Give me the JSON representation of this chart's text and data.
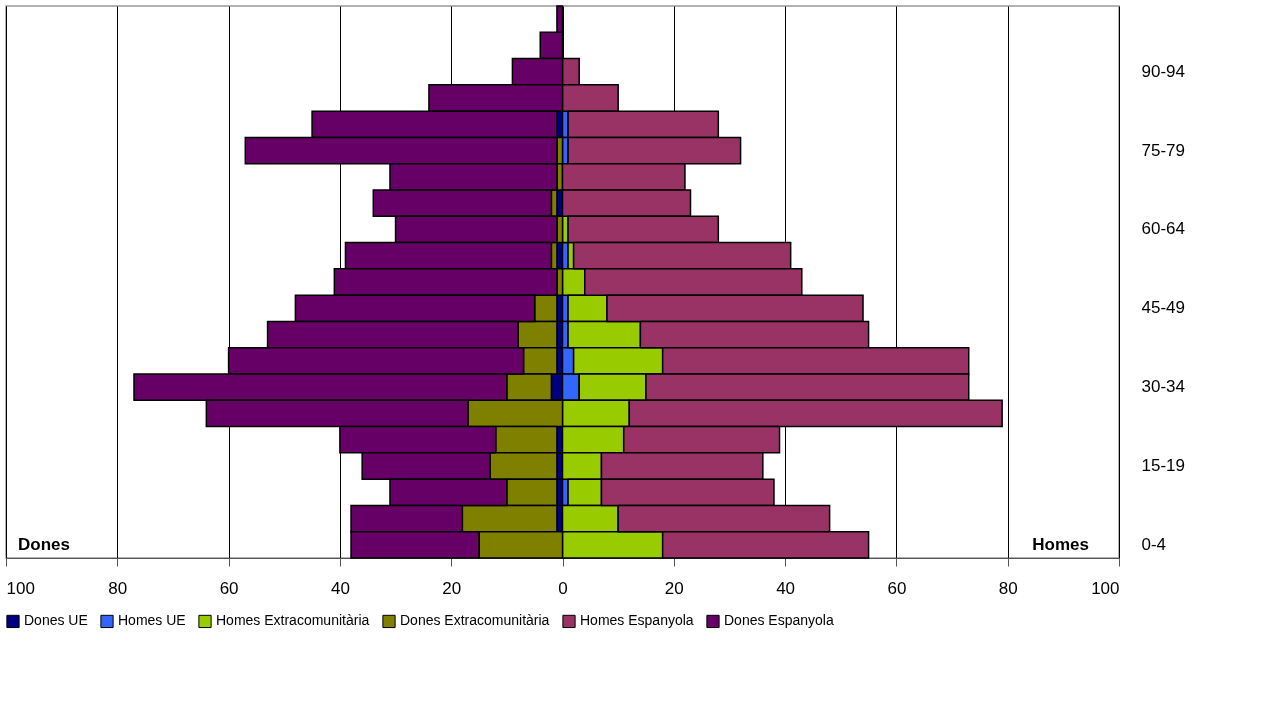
{
  "chart_data": {
    "type": "bar",
    "orientation": "horizontal",
    "stacked": true,
    "categories": [
      null,
      null,
      "90-94",
      null,
      null,
      "75-79",
      null,
      null,
      "60-64",
      null,
      null,
      "45-49",
      null,
      null,
      "30-34",
      null,
      null,
      "15-19",
      null,
      null,
      "0-4"
    ],
    "series": [
      {
        "name": "Dones UE",
        "color": "#000080",
        "values": [
          null,
          null,
          null,
          null,
          -1,
          null,
          null,
          -1,
          null,
          -1,
          null,
          -1,
          -1,
          -1,
          -2,
          null,
          -1,
          -1,
          -1,
          -1,
          null
        ]
      },
      {
        "name": "Homes UE",
        "color": "#3366ff",
        "values": [
          null,
          null,
          null,
          null,
          1,
          1,
          null,
          null,
          null,
          1,
          null,
          1,
          1,
          2,
          3,
          null,
          null,
          null,
          1,
          null,
          null
        ]
      },
      {
        "name": "Homes Extracomunitària",
        "color": "#99cc00",
        "values": [
          null,
          null,
          null,
          null,
          null,
          null,
          null,
          null,
          1,
          1,
          4,
          7,
          13,
          16,
          12,
          12,
          11,
          7,
          6,
          10,
          18
        ]
      },
      {
        "name": "Dones Extracomunitària",
        "color": "#808000",
        "values": [
          null,
          null,
          null,
          null,
          null,
          -1,
          -1,
          -1,
          -1,
          -1,
          -1,
          -4,
          -7,
          -6,
          -8,
          -17,
          -11,
          -12,
          -9,
          -17,
          -15
        ]
      },
      {
        "name": "Homes Espanyola",
        "color": "#993366",
        "values": [
          null,
          null,
          3,
          10,
          27,
          31,
          22,
          23,
          27,
          39,
          39,
          46,
          41,
          55,
          58,
          67,
          28,
          29,
          31,
          38,
          37
        ]
      },
      {
        "name": "Dones Espanyola",
        "color": "#660066",
        "values": [
          -1,
          -4,
          -9,
          -24,
          -44,
          -56,
          -30,
          -32,
          -29,
          -37,
          -40,
          -43,
          -45,
          -53,
          -67,
          -47,
          -28,
          -23,
          -21,
          -20,
          -23
        ]
      }
    ],
    "xlim": [
      -100,
      100
    ],
    "xticks": [
      {
        "value": -100,
        "label": "100"
      },
      {
        "value": -80,
        "label": "80"
      },
      {
        "value": -60,
        "label": "60"
      },
      {
        "value": -40,
        "label": "40"
      },
      {
        "value": -20,
        "label": "20"
      },
      0,
      20,
      40,
      60,
      80,
      100
    ],
    "grid": "x",
    "legend": "bottom",
    "annotations": [
      "Dones",
      "Homes"
    ]
  }
}
